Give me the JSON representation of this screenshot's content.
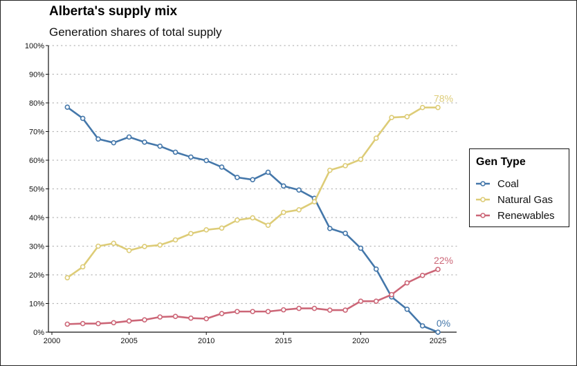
{
  "chart_data": {
    "type": "line",
    "title": "Alberta's supply mix",
    "subtitle": "Generation shares of total supply",
    "xlabel": "",
    "ylabel": "",
    "x": [
      2001,
      2002,
      2003,
      2004,
      2005,
      2006,
      2007,
      2008,
      2009,
      2010,
      2011,
      2012,
      2013,
      2014,
      2015,
      2016,
      2017,
      2018,
      2019,
      2020,
      2021,
      2022,
      2023,
      2024,
      2025
    ],
    "xlim": [
      2000,
      2026.2
    ],
    "ylim": [
      0,
      100
    ],
    "x_ticks": [
      2000,
      2005,
      2010,
      2015,
      2020,
      2025
    ],
    "x_tick_labels": [
      "2000",
      "2005",
      "2010",
      "2015",
      "2020",
      "2025"
    ],
    "y_ticks": [
      0,
      10,
      20,
      30,
      40,
      50,
      60,
      70,
      80,
      90,
      100
    ],
    "y_tick_labels": [
      "0%",
      "10%",
      "20%",
      "30%",
      "40%",
      "50%",
      "60%",
      "70%",
      "80%",
      "90%",
      "100%"
    ],
    "grid": "horizontal-dotted",
    "legend": {
      "title": "Gen Type",
      "position": "right"
    },
    "series": [
      {
        "name": "Coal",
        "color": "#4477AA",
        "values": [
          78.5,
          74.6,
          67.4,
          66.1,
          68.1,
          66.3,
          64.9,
          62.8,
          61.1,
          59.9,
          57.6,
          54.0,
          53.2,
          55.8,
          51.0,
          49.6,
          46.7,
          36.2,
          34.5,
          29.3,
          22.0,
          12.3,
          8.0,
          2.2,
          0.0
        ],
        "end_label": "0%"
      },
      {
        "name": "Natural Gas",
        "color": "#DDCC77",
        "values": [
          19.0,
          22.8,
          30.0,
          31.0,
          28.5,
          29.9,
          30.4,
          32.2,
          34.4,
          35.7,
          36.3,
          39.1,
          39.9,
          37.3,
          41.8,
          42.7,
          45.5,
          56.5,
          58.1,
          60.3,
          67.7,
          74.9,
          75.2,
          78.4,
          78.4
        ],
        "end_label": "78%"
      },
      {
        "name": "Renewables",
        "color": "#CC6677",
        "values": [
          2.8,
          3.0,
          3.0,
          3.3,
          3.9,
          4.3,
          5.3,
          5.5,
          4.9,
          4.7,
          6.5,
          7.2,
          7.2,
          7.2,
          7.8,
          8.3,
          8.3,
          7.7,
          7.7,
          10.8,
          10.8,
          13.1,
          17.2,
          19.8,
          21.9
        ],
        "end_label": "22%"
      }
    ]
  }
}
